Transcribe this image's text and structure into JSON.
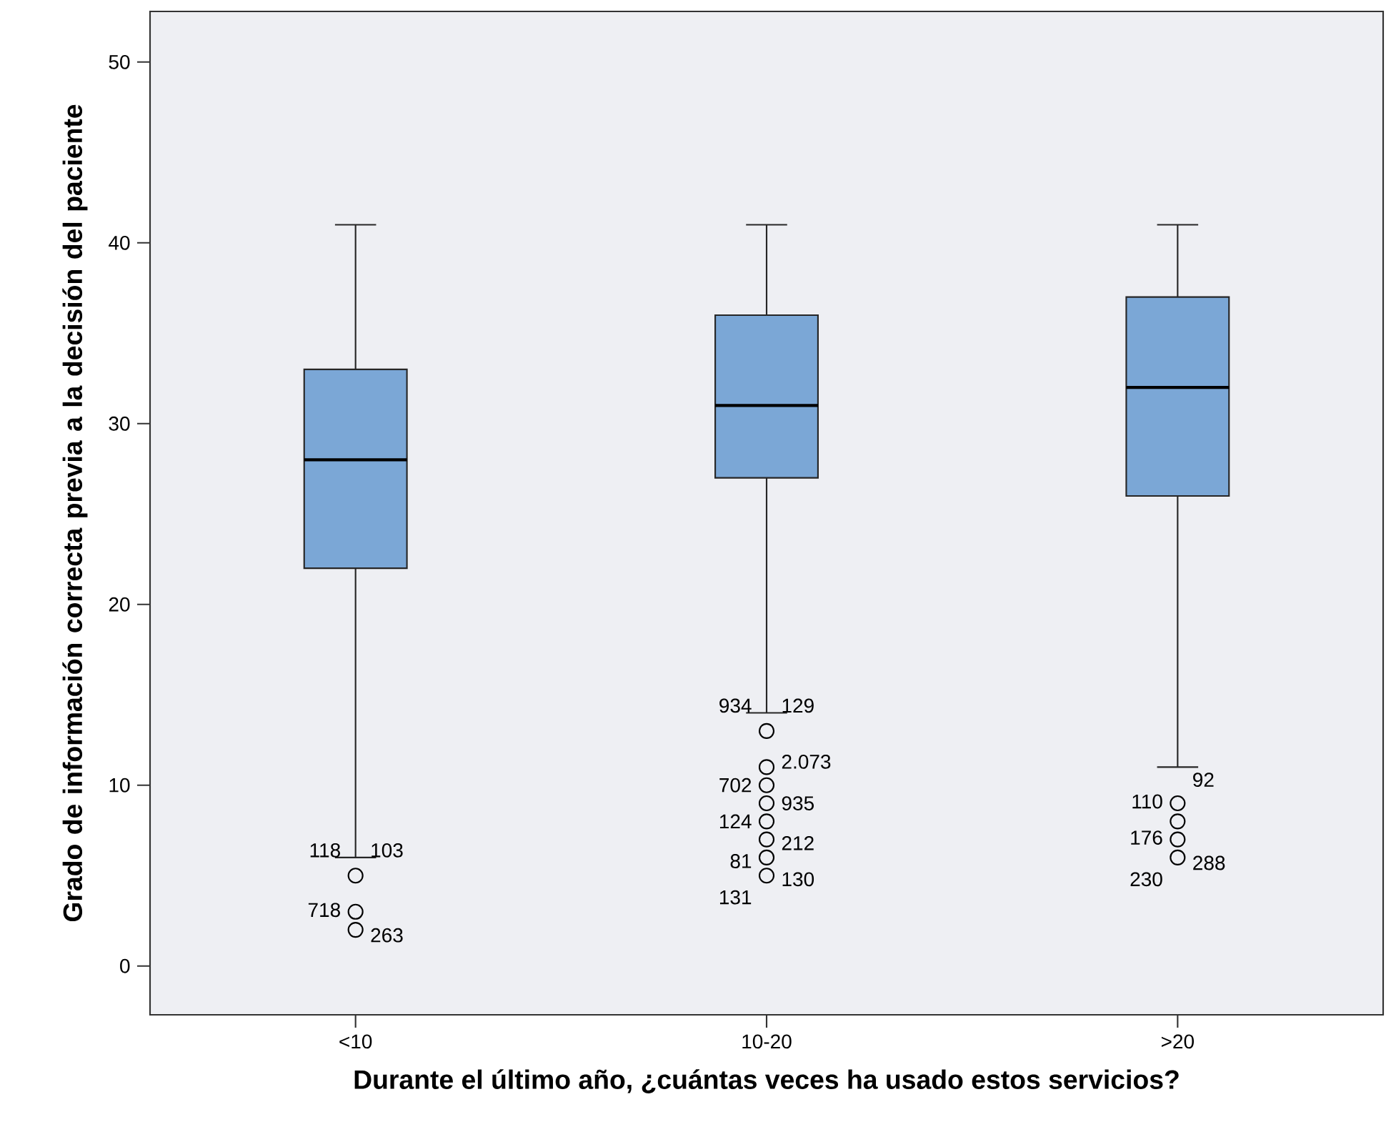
{
  "chart_data": {
    "type": "box",
    "xlabel": "Durante el último año, ¿cuántas veces ha usado estos servicios?",
    "ylabel": "Grado de información correcta previa a la decisión del paciente",
    "categories": [
      "<10",
      "10-20",
      ">20"
    ],
    "color": "#7ba7d6",
    "marker": "circle",
    "ylim": [
      -2.7,
      52.8
    ],
    "yticks": [
      0,
      10,
      20,
      30,
      40,
      50
    ],
    "boxes": [
      {
        "low": 6,
        "q1": 22,
        "median": 28,
        "q3": 33,
        "high": 41,
        "outliers": [
          5,
          3,
          2
        ]
      },
      {
        "low": 14,
        "q1": 27,
        "median": 31,
        "q3": 36,
        "high": 41,
        "outliers": [
          13,
          11,
          10,
          9,
          8,
          7,
          6,
          5
        ]
      },
      {
        "low": 11,
        "q1": 26,
        "median": 32,
        "q3": 37,
        "high": 41,
        "outliers": [
          9,
          8,
          7,
          6
        ]
      }
    ],
    "annotations": [
      "118",
      "103",
      "718",
      "263",
      "934",
      "129",
      "702",
      "2.073",
      "124",
      "935",
      "81",
      "212",
      "131",
      "130",
      "110",
      "92",
      "176",
      "288",
      "230"
    ]
  }
}
